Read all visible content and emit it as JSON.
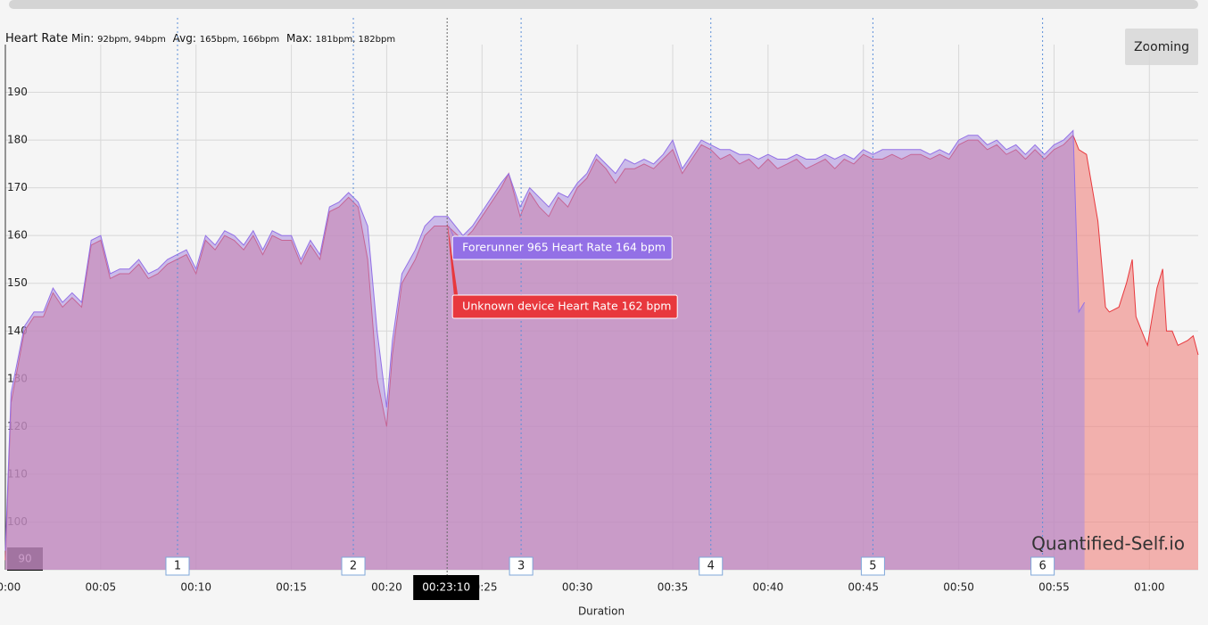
{
  "header": {
    "title": "Heart Rate",
    "stats": [
      {
        "label": "Min:",
        "value": "92bpm, 94bpm"
      },
      {
        "label": "Avg:",
        "value": "165bpm, 166bpm"
      },
      {
        "label": "Max:",
        "value": "181bpm, 182bpm"
      }
    ]
  },
  "button": "Zooming",
  "watermark": "Quantified-Self.io",
  "chart_data": {
    "type": "area",
    "xlabel": "Duration",
    "xlim": [
      0,
      62.56
    ],
    "ylim": [
      90,
      200
    ],
    "xticks": [
      {
        "value": 0,
        "label": "00:00"
      },
      {
        "value": 5,
        "label": "00:05"
      },
      {
        "value": 10,
        "label": "00:10"
      },
      {
        "value": 15,
        "label": "00:15"
      },
      {
        "value": 20,
        "label": "00:20"
      },
      {
        "value": 25,
        "label": "00:25"
      },
      {
        "value": 30,
        "label": "00:30"
      },
      {
        "value": 35,
        "label": "00:35"
      },
      {
        "value": 40,
        "label": "00:40"
      },
      {
        "value": 45,
        "label": "00:45"
      },
      {
        "value": 50,
        "label": "00:50"
      },
      {
        "value": 55,
        "label": "00:55"
      },
      {
        "value": 60,
        "label": "01:00"
      }
    ],
    "yticks": [
      90,
      100,
      110,
      120,
      130,
      140,
      150,
      160,
      170,
      180,
      190
    ],
    "grid": true,
    "laps": [
      {
        "label": "1",
        "x": 9.03
      },
      {
        "label": "2",
        "x": 18.25
      },
      {
        "label": "3",
        "x": 27.05
      },
      {
        "label": "4",
        "x": 37.0
      },
      {
        "label": "5",
        "x": 45.5
      },
      {
        "label": "6",
        "x": 54.4
      }
    ],
    "cursor": {
      "x": 23.17,
      "label": "00:23:10"
    },
    "tooltips": [
      {
        "text": "Forerunner 965 Heart Rate 164 bpm",
        "color": "#9370e6"
      },
      {
        "text": "Unknown device Heart Rate 162 bpm",
        "color": "#e8383d"
      }
    ],
    "series": [
      {
        "name": "Unknown device Heart Rate",
        "color": "#e8383d",
        "fill": "#f08a86",
        "x": [
          0,
          0.3,
          1,
          1.5,
          2,
          2.5,
          3,
          3.5,
          4,
          4.5,
          5,
          5.5,
          6,
          6.5,
          7,
          7.5,
          8,
          8.5,
          9,
          9.5,
          10,
          10.5,
          11,
          11.5,
          12,
          12.5,
          13,
          13.5,
          14,
          14.5,
          15,
          15.5,
          16,
          16.5,
          17,
          17.5,
          18,
          18.5,
          19,
          19.5,
          20,
          20.3,
          20.8,
          21.5,
          22,
          22.5,
          23.2,
          24,
          24.5,
          25,
          25.5,
          26,
          26.4,
          27,
          27.5,
          28,
          28.5,
          29,
          29.5,
          30,
          30.5,
          31,
          31.5,
          32,
          32.5,
          33,
          33.5,
          34,
          34.5,
          35,
          35.5,
          36,
          36.5,
          37,
          37.5,
          38,
          38.5,
          39,
          39.5,
          40,
          40.5,
          41,
          41.5,
          42,
          42.5,
          43,
          43.5,
          44,
          44.5,
          45,
          45.5,
          46,
          46.5,
          47,
          47.5,
          48,
          48.5,
          49,
          49.5,
          50,
          50.5,
          51,
          51.5,
          52,
          52.5,
          53,
          53.5,
          54,
          54.5,
          55,
          55.5,
          56,
          56.3,
          56.7,
          57.3,
          57.7,
          57.9,
          58.4,
          58.8,
          59.1,
          59.3,
          59.6,
          59.9,
          60.4,
          60.7,
          60.9,
          61.2,
          61.5,
          62,
          62.3,
          62.56
        ],
        "values": [
          92,
          125,
          140,
          143,
          143,
          148,
          145,
          147,
          145,
          158,
          159,
          151,
          152,
          152,
          154,
          151,
          152,
          154,
          155,
          156,
          152,
          159,
          157,
          160,
          159,
          157,
          160,
          156,
          160,
          159,
          159,
          154,
          158,
          155,
          165,
          166,
          168,
          166,
          155,
          130,
          120,
          135,
          150,
          155,
          160,
          162,
          162,
          159,
          161,
          164,
          167,
          170,
          173,
          164,
          169,
          166,
          164,
          168,
          166,
          170,
          172,
          176,
          174,
          171,
          174,
          174,
          175,
          174,
          176,
          178,
          173,
          176,
          179,
          178,
          176,
          177,
          175,
          176,
          174,
          176,
          174,
          175,
          176,
          174,
          175,
          176,
          174,
          176,
          175,
          177,
          176,
          176,
          177,
          176,
          177,
          177,
          176,
          177,
          176,
          179,
          180,
          180,
          178,
          179,
          177,
          178,
          176,
          178,
          176,
          178,
          179,
          181,
          178,
          177,
          163,
          145,
          144,
          145,
          150,
          155,
          143,
          140,
          137,
          149,
          153,
          140,
          140,
          137,
          138,
          139,
          135
        ]
      },
      {
        "name": "Forerunner 965 Heart Rate",
        "color": "#9370e6",
        "fill": "#a78bdf",
        "x": [
          0,
          0.3,
          1,
          1.5,
          2,
          2.5,
          3,
          3.5,
          4,
          4.5,
          5,
          5.5,
          6,
          6.5,
          7,
          7.5,
          8,
          8.5,
          9,
          9.5,
          10,
          10.5,
          11,
          11.5,
          12,
          12.5,
          13,
          13.5,
          14,
          14.5,
          15,
          15.5,
          16,
          16.5,
          17,
          17.5,
          18,
          18.5,
          19,
          19.5,
          20,
          20.3,
          20.8,
          21.5,
          22,
          22.5,
          23.2,
          24,
          24.5,
          25,
          25.5,
          26,
          26.4,
          27,
          27.5,
          28,
          28.5,
          29,
          29.5,
          30,
          30.5,
          31,
          31.5,
          32,
          32.5,
          33,
          33.5,
          34,
          34.5,
          35,
          35.5,
          36,
          36.5,
          37,
          37.5,
          38,
          38.5,
          39,
          39.5,
          40,
          40.5,
          41,
          41.5,
          42,
          42.5,
          43,
          43.5,
          44,
          44.5,
          45,
          45.5,
          46,
          46.5,
          47,
          47.5,
          48,
          48.5,
          49,
          49.5,
          50,
          50.5,
          51,
          51.5,
          52,
          52.5,
          53,
          53.5,
          54,
          54.5,
          55,
          55.5,
          56,
          56.3,
          56.6
        ],
        "values": [
          94,
          127,
          141,
          144,
          144,
          149,
          146,
          148,
          146,
          159,
          160,
          152,
          153,
          153,
          155,
          152,
          153,
          155,
          156,
          157,
          153,
          160,
          158,
          161,
          160,
          158,
          161,
          157,
          161,
          160,
          160,
          155,
          159,
          156,
          166,
          167,
          169,
          167,
          162,
          140,
          124,
          138,
          152,
          157,
          162,
          164,
          164,
          160,
          162,
          165,
          168,
          171,
          173,
          166,
          170,
          168,
          166,
          169,
          168,
          171,
          173,
          177,
          175,
          173,
          176,
          175,
          176,
          175,
          177,
          180,
          174,
          177,
          180,
          179,
          178,
          178,
          177,
          177,
          176,
          177,
          176,
          176,
          177,
          176,
          176,
          177,
          176,
          177,
          176,
          178,
          177,
          178,
          178,
          178,
          178,
          178,
          177,
          178,
          177,
          180,
          181,
          181,
          179,
          180,
          178,
          179,
          177,
          179,
          177,
          179,
          180,
          182,
          144,
          146
        ]
      }
    ]
  }
}
